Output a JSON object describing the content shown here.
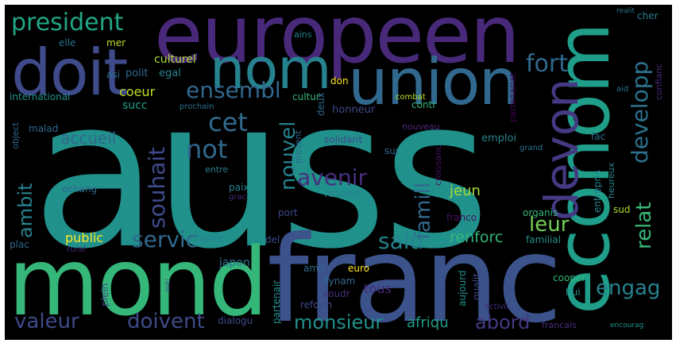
{
  "words": [
    {
      "text": "auss",
      "color": "#21918c"
    },
    {
      "text": "franc",
      "color": "#3b528b"
    },
    {
      "text": "mond",
      "color": "#35b779"
    },
    {
      "text": "econom",
      "color": "#1f9e89"
    },
    {
      "text": "europeen",
      "color": "#482878"
    },
    {
      "text": "doit",
      "color": "#3e4a89"
    },
    {
      "text": "union",
      "color": "#31688e"
    },
    {
      "text": "nom",
      "color": "#26828e"
    },
    {
      "text": "devon",
      "color": "#443983"
    },
    {
      "text": "president",
      "color": "#21a685"
    },
    {
      "text": "fort",
      "color": "#31688e"
    },
    {
      "text": "developp",
      "color": "#2c728e"
    },
    {
      "text": "ensembl",
      "color": "#31688e"
    },
    {
      "text": "cet",
      "color": "#31688e"
    },
    {
      "text": "not",
      "color": "#31688e"
    },
    {
      "text": "souhait",
      "color": "#3e4a89"
    },
    {
      "text": "nouvel",
      "color": "#26828e"
    },
    {
      "text": "avenir",
      "color": "#472f7d"
    },
    {
      "text": "famill",
      "color": "#31688e"
    },
    {
      "text": "relat",
      "color": "#38b977"
    },
    {
      "text": "leur",
      "color": "#73d056"
    },
    {
      "text": "salu",
      "color": "#26828e"
    },
    {
      "text": "engag",
      "color": "#26828e"
    },
    {
      "text": "ambit",
      "color": "#26828e"
    },
    {
      "text": "servic",
      "color": "#31688e"
    },
    {
      "text": "valeur",
      "color": "#3e4a89"
    },
    {
      "text": "doivent",
      "color": "#3e4a89"
    },
    {
      "text": "monsieur",
      "color": "#21918c"
    },
    {
      "text": "abord",
      "color": "#443983"
    },
    {
      "text": "afriqu",
      "color": "#1f9e89"
    },
    {
      "text": "renforc",
      "color": "#35b779"
    },
    {
      "text": "public",
      "color": "#fde725"
    },
    {
      "text": "accueil",
      "color": "#31688e"
    },
    {
      "text": "coeur",
      "color": "#c2df23"
    },
    {
      "text": "jeun",
      "color": "#a5db36"
    },
    {
      "text": "tous",
      "color": "#482878"
    },
    {
      "text": "culturel",
      "color": "#addc30"
    },
    {
      "text": "polit",
      "color": "#31688e"
    },
    {
      "text": "egal",
      "color": "#26828e"
    },
    {
      "text": "asi",
      "color": "#2c728e"
    },
    {
      "text": "elle",
      "color": "#2c728e"
    },
    {
      "text": "mer",
      "color": "#c2df23"
    },
    {
      "text": "ains",
      "color": "#26828e"
    },
    {
      "text": "succ",
      "color": "#1fa187"
    },
    {
      "text": "international",
      "color": "#21918c"
    },
    {
      "text": "don",
      "color": "#fde725"
    },
    {
      "text": "cultur",
      "color": "#35b779"
    },
    {
      "text": "deux",
      "color": "#31688e"
    },
    {
      "text": "prochain",
      "color": "#2c728e"
    },
    {
      "text": "combat",
      "color": "#bddf26"
    },
    {
      "text": "partenariat",
      "color": "#440154"
    },
    {
      "text": "confianc",
      "color": "#482878"
    },
    {
      "text": "cher",
      "color": "#26828e"
    },
    {
      "text": "realit",
      "color": "#2c728e"
    },
    {
      "text": "aid",
      "color": "#2c728e"
    },
    {
      "text": "honneur",
      "color": "#3e4a89"
    },
    {
      "text": "contr",
      "color": "#35b779"
    },
    {
      "text": "solidarit",
      "color": "#3e4a89"
    },
    {
      "text": "sur",
      "color": "#31688e"
    },
    {
      "text": "nouveau",
      "color": "#482878"
    },
    {
      "text": "croissanc",
      "color": "#471063"
    },
    {
      "text": "emploi",
      "color": "#26828e"
    },
    {
      "text": "grand",
      "color": "#2c728e"
    },
    {
      "text": "fac",
      "color": "#2c728e"
    },
    {
      "text": "heureux",
      "color": "#26828e"
    },
    {
      "text": "entrepris",
      "color": "#26828e"
    },
    {
      "text": "sud",
      "color": "#addc30"
    },
    {
      "text": "organis",
      "color": "#35b779"
    },
    {
      "text": "familial",
      "color": "#21918c"
    },
    {
      "text": "japon",
      "color": "#2c728e"
    },
    {
      "text": "del",
      "color": "#3e4a89"
    },
    {
      "text": "volont",
      "color": "#26828e"
    },
    {
      "text": "plac",
      "color": "#31688e"
    },
    {
      "text": "rural",
      "color": "#482878"
    },
    {
      "text": "plein",
      "color": "#3e4a89"
    },
    {
      "text": "initi",
      "color": "#3e4a89"
    },
    {
      "text": "partenair",
      "color": "#21918c"
    },
    {
      "text": "amit",
      "color": "#31688e"
    },
    {
      "text": "dynam",
      "color": "#31688e"
    },
    {
      "text": "voudr",
      "color": "#472f7d"
    },
    {
      "text": "reform",
      "color": "#3e4a89"
    },
    {
      "text": "dialogu",
      "color": "#3e4a89"
    },
    {
      "text": "euro",
      "color": "#fde725"
    },
    {
      "text": "franco",
      "color": "#471063"
    },
    {
      "text": "respect",
      "color": "#26828e"
    },
    {
      "text": "port",
      "color": "#3e4a89"
    },
    {
      "text": "paix",
      "color": "#26828e"
    },
    {
      "text": "grac",
      "color": "#482878"
    },
    {
      "text": "entre",
      "color": "#26828e"
    },
    {
      "text": "echang",
      "color": "#31688e"
    },
    {
      "text": "malad",
      "color": "#31688e"
    },
    {
      "text": "object",
      "color": "#31688e"
    },
    {
      "text": "present",
      "color": "#31688e"
    },
    {
      "text": "qualit",
      "color": "#3e4a89"
    },
    {
      "text": "aujourd",
      "color": "#21918c"
    },
    {
      "text": "hui",
      "color": "#21918c"
    },
    {
      "text": "cooper",
      "color": "#35b779"
    },
    {
      "text": "activit",
      "color": "#472f7d"
    },
    {
      "text": "francais",
      "color": "#472f7d"
    },
    {
      "text": "encourag",
      "color": "#21918c"
    }
  ]
}
